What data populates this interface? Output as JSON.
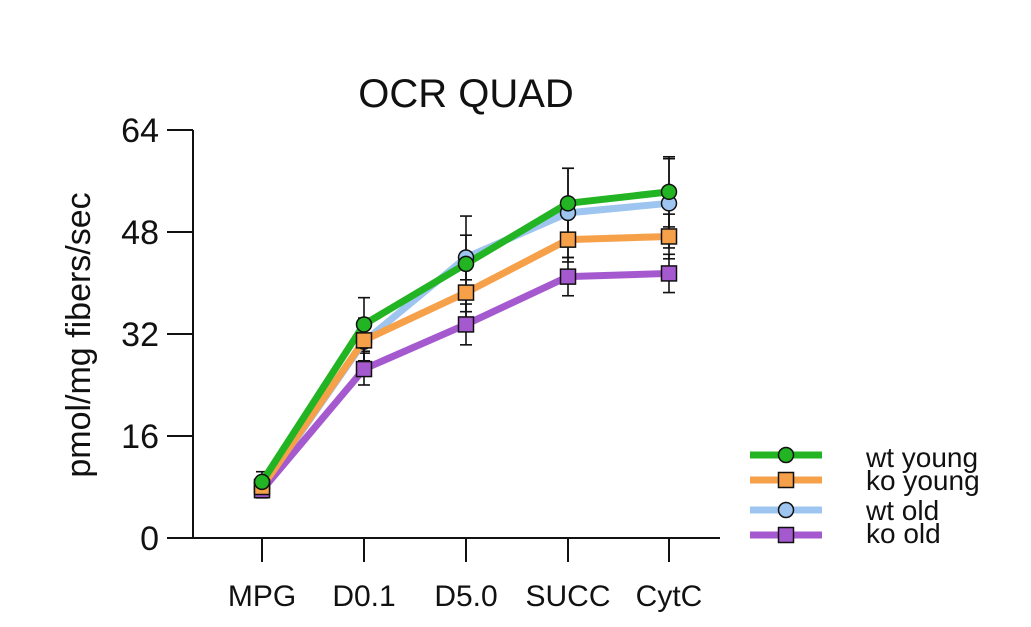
{
  "chart_data": {
    "type": "line",
    "title": "OCR  QUAD",
    "xlabel": "",
    "ylabel": "pmol/mg fibers/sec",
    "categories": [
      "MPG",
      "D0.1",
      "D5.0",
      "SUCC",
      "CytC"
    ],
    "ylim": [
      0,
      64
    ],
    "yticks": [
      "0",
      "16",
      "32",
      "48",
      "64"
    ],
    "grid": false,
    "legend_placement": "bottom-right",
    "series": [
      {
        "name": "wt young",
        "color": "#22b422",
        "marker": "circle",
        "values": [
          8.8,
          33.5,
          43.0,
          52.5,
          54.3
        ],
        "errors": [
          1.6,
          4.2,
          7.5,
          5.5,
          5.5
        ]
      },
      {
        "name": "ko young",
        "color": "#f6a04a",
        "marker": "square",
        "values": [
          8.0,
          31.0,
          38.5,
          46.8,
          47.3
        ],
        "errors": [
          1.2,
          3.5,
          4.5,
          3.5,
          3.5
        ]
      },
      {
        "name": "wt old",
        "color": "#9ec4f0",
        "marker": "circle",
        "values": [
          7.8,
          30.8,
          44.0,
          51.0,
          52.5
        ],
        "errors": [
          1.2,
          3.0,
          3.5,
          7.0,
          7.0
        ]
      },
      {
        "name": "ko old",
        "color": "#a559cf",
        "marker": "square",
        "values": [
          7.5,
          26.5,
          33.5,
          41.0,
          41.5
        ],
        "errors": [
          1.2,
          2.5,
          3.2,
          3.0,
          3.0
        ]
      }
    ]
  }
}
